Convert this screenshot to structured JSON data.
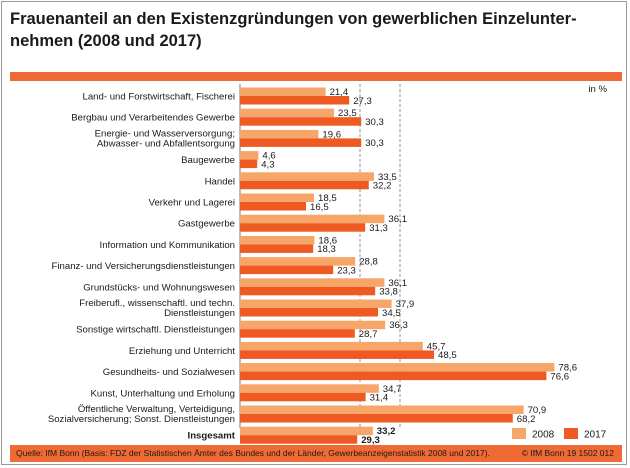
{
  "title": "Frauenanteil an den Existenzgründungen von gewerblichen Einzelunter-\nnehmen (2008 und 2017)",
  "footer": {
    "source": "Quelle: IfM Bonn (Basis: FDZ der Statistischen Ämter des Bundes und der Länder, Gewerbeanzeigenstatistik 2008 und 2017).",
    "copyright": "© IfM Bonn 19 1502 012"
  },
  "colors": {
    "band": "#f06a35",
    "series_2008": "#f5a668",
    "series_2017": "#ee5a22"
  },
  "chart_data": {
    "type": "bar",
    "orientation": "horizontal",
    "unit": "in %",
    "xlim": [
      0,
      90
    ],
    "gridlines": [
      30,
      40
    ],
    "legend_position": "bottom-right",
    "categories": [
      [
        "Land- und Forstwirtschaft, Fischerei"
      ],
      [
        "Bergbau und Verarbeitendes Gewerbe"
      ],
      [
        "Energie- und Wasserversorgung;",
        "Abwasser- und Abfallentsorgung"
      ],
      [
        "Baugewerbe"
      ],
      [
        "Handel"
      ],
      [
        "Verkehr und Lagerei"
      ],
      [
        "Gastgewerbe"
      ],
      [
        "Information und Kommunikation"
      ],
      [
        "Finanz- und Versicherungsdienstleistungen"
      ],
      [
        "Grundstücks- und Wohnungswesen"
      ],
      [
        "Freiberufl., wissenschaftl. und techn.",
        "Dienstleistungen"
      ],
      [
        "Sonstige wirtschaftl. Dienstleistungen"
      ],
      [
        "Erziehung und Unterricht"
      ],
      [
        "Gesundheits- und Sozialwesen"
      ],
      [
        "Kunst, Unterhaltung und Erholung"
      ],
      [
        "Öffentliche Verwaltung, Verteidigung,",
        "Sozialversicherung; Sonst. Dienstleistungen"
      ],
      [
        "Insgesamt"
      ]
    ],
    "series": [
      {
        "name": "2008",
        "values": [
          21.4,
          23.5,
          19.6,
          4.6,
          33.5,
          18.5,
          36.1,
          18.6,
          28.8,
          36.1,
          37.9,
          36.3,
          45.7,
          78.6,
          34.7,
          70.9,
          33.2
        ],
        "labels": [
          "21,4",
          "23,5",
          "19,6",
          "4,6",
          "33,5",
          "18,5",
          "36,1",
          "18,6",
          "28,8",
          "36,1",
          "37,9",
          "36,3",
          "45,7",
          "78,6",
          "34,7",
          "70,9",
          "33,2"
        ]
      },
      {
        "name": "2017",
        "values": [
          27.3,
          30.3,
          30.3,
          4.3,
          32.2,
          16.5,
          31.3,
          18.3,
          23.3,
          33.8,
          34.5,
          28.7,
          48.5,
          76.6,
          31.4,
          68.2,
          29.3
        ],
        "labels": [
          "27,3",
          "30,3",
          "30,3",
          "4,3",
          "32,2",
          "16,5",
          "31,3",
          "18,3",
          "23,3",
          "33,8",
          "34,5",
          "28,7",
          "48,5",
          "76,6",
          "31,4",
          "68,2",
          "29,3"
        ]
      }
    ],
    "bold_category_index": 16
  }
}
